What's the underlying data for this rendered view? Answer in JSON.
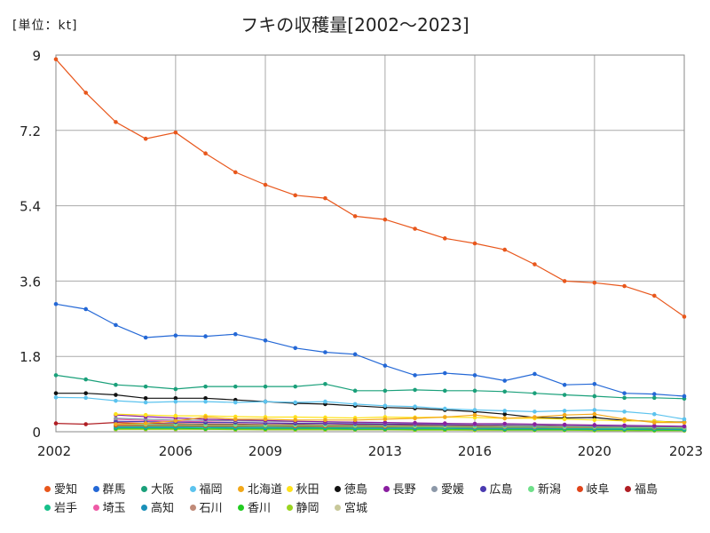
{
  "chart_data": {
    "type": "line",
    "title": "フキの収穫量[2002～2023]",
    "unit_label": "[単位：kt]",
    "ylim": [
      0,
      9
    ],
    "xlim": [
      2002,
      2023
    ],
    "y_ticks": [
      "0",
      "1.8",
      "3.6",
      "5.4",
      "7.2",
      "9"
    ],
    "x_ticks": [
      "2002",
      "2006",
      "2009",
      "2013",
      "2016",
      "2020",
      "2023"
    ],
    "grid": true,
    "legend_position": "bottom",
    "series": [
      {
        "name": "愛知",
        "color": "#e8571c",
        "x": [
          2002,
          2003,
          2004,
          2005,
          2006,
          2007,
          2008,
          2009,
          2010,
          2011,
          2012,
          2013,
          2014,
          2015,
          2016,
          2017,
          2018,
          2019,
          2020,
          2021,
          2022,
          2023
        ],
        "values": [
          8.9,
          8.1,
          7.4,
          7.0,
          7.15,
          6.65,
          6.2,
          5.9,
          5.65,
          5.58,
          5.15,
          5.07,
          4.85,
          4.62,
          4.5,
          4.35,
          4.0,
          3.6,
          3.56,
          3.48,
          3.25,
          2.75
        ]
      },
      {
        "name": "群馬",
        "color": "#2468d6",
        "x": [
          2002,
          2003,
          2004,
          2005,
          2006,
          2007,
          2008,
          2009,
          2010,
          2011,
          2012,
          2013,
          2014,
          2015,
          2016,
          2017,
          2018,
          2019,
          2020,
          2021,
          2022,
          2023
        ],
        "values": [
          3.05,
          2.93,
          2.55,
          2.25,
          2.3,
          2.28,
          2.33,
          2.18,
          2.0,
          1.9,
          1.85,
          1.58,
          1.35,
          1.4,
          1.35,
          1.22,
          1.38,
          1.12,
          1.14,
          0.92,
          0.9,
          0.85
        ]
      },
      {
        "name": "大阪",
        "color": "#1aa07a",
        "x": [
          2002,
          2003,
          2004,
          2005,
          2006,
          2007,
          2008,
          2009,
          2010,
          2011,
          2012,
          2013,
          2014,
          2015,
          2016,
          2017,
          2018,
          2019,
          2020,
          2021,
          2022,
          2023
        ],
        "values": [
          1.35,
          1.25,
          1.12,
          1.08,
          1.02,
          1.08,
          1.08,
          1.08,
          1.08,
          1.14,
          0.98,
          0.98,
          1.0,
          0.98,
          0.98,
          0.96,
          0.92,
          0.88,
          0.85,
          0.81,
          0.81,
          0.79
        ]
      },
      {
        "name": "福岡",
        "color": "#5cc3ee",
        "x": [
          2002,
          2003,
          2004,
          2005,
          2006,
          2007,
          2008,
          2009,
          2010,
          2011,
          2012,
          2013,
          2014,
          2015,
          2016,
          2017,
          2018,
          2019,
          2020,
          2021,
          2022,
          2023
        ],
        "values": [
          0.82,
          0.81,
          0.74,
          0.7,
          0.72,
          0.72,
          0.7,
          0.72,
          0.7,
          0.72,
          0.66,
          0.62,
          0.6,
          0.55,
          0.52,
          0.5,
          0.48,
          0.5,
          0.52,
          0.48,
          0.42,
          0.3
        ]
      },
      {
        "name": "北海道",
        "color": "#f2a81a",
        "x": [
          2004,
          2005,
          2006,
          2007,
          2008,
          2009,
          2010,
          2011,
          2012,
          2013,
          2014,
          2015,
          2016,
          2017,
          2018,
          2019,
          2020,
          2021,
          2022,
          2023
        ],
        "values": [
          0.18,
          0.2,
          0.26,
          0.35,
          0.3,
          0.3,
          0.28,
          0.28,
          0.28,
          0.3,
          0.32,
          0.35,
          0.4,
          0.32,
          0.35,
          0.4,
          0.42,
          0.3,
          0.22,
          0.22
        ]
      },
      {
        "name": "秋田",
        "color": "#ffe21a",
        "x": [
          2004,
          2005,
          2006,
          2007,
          2008,
          2009,
          2010,
          2011,
          2012,
          2013,
          2014,
          2015,
          2016,
          2017,
          2018,
          2019,
          2020,
          2021,
          2022,
          2023
        ],
        "values": [
          0.42,
          0.4,
          0.38,
          0.38,
          0.36,
          0.35,
          0.35,
          0.34,
          0.33,
          0.35,
          0.34,
          0.35,
          0.34,
          0.32,
          0.32,
          0.3,
          0.28,
          0.26,
          0.25,
          0.22
        ]
      },
      {
        "name": "徳島",
        "color": "#111111",
        "x": [
          2002,
          2003,
          2004,
          2005,
          2006,
          2007,
          2008,
          2009,
          2010,
          2011,
          2012,
          2013,
          2014,
          2015,
          2016,
          2017,
          2018,
          2019,
          2020,
          2021,
          2022,
          2023
        ],
        "values": [
          0.92,
          0.92,
          0.88,
          0.8,
          0.8,
          0.8,
          0.76,
          0.72,
          0.68,
          0.66,
          0.62,
          0.58,
          0.56,
          0.52,
          0.48,
          0.42,
          0.34,
          0.33,
          0.34,
          0.27,
          0.25,
          0.23
        ]
      },
      {
        "name": "長野",
        "color": "#8a1fa0",
        "x": [
          2004,
          2005,
          2006,
          2007,
          2008,
          2009,
          2010,
          2011,
          2012,
          2013,
          2014,
          2015,
          2016,
          2017,
          2018,
          2019,
          2020,
          2021,
          2022,
          2023
        ],
        "values": [
          0.4,
          0.36,
          0.33,
          0.3,
          0.28,
          0.27,
          0.25,
          0.24,
          0.23,
          0.22,
          0.21,
          0.2,
          0.19,
          0.19,
          0.18,
          0.17,
          0.16,
          0.15,
          0.14,
          0.13
        ]
      },
      {
        "name": "愛媛",
        "color": "#8c98a8",
        "x": [
          2004,
          2005,
          2006,
          2007,
          2008,
          2009,
          2010,
          2011,
          2012,
          2013,
          2014,
          2015,
          2016,
          2017,
          2018,
          2019,
          2020,
          2021,
          2022,
          2023
        ],
        "values": [
          0.32,
          0.3,
          0.28,
          0.27,
          0.26,
          0.25,
          0.24,
          0.23,
          0.22,
          0.21,
          0.2,
          0.19,
          0.18,
          0.17,
          0.16,
          0.16,
          0.15,
          0.14,
          0.13,
          0.12
        ]
      },
      {
        "name": "広島",
        "color": "#4a3ab0",
        "x": [
          2004,
          2005,
          2006,
          2007,
          2008,
          2009,
          2010,
          2011,
          2012,
          2013,
          2014,
          2015,
          2016,
          2017,
          2018,
          2019,
          2020,
          2021,
          2022,
          2023
        ],
        "values": [
          0.25,
          0.24,
          0.23,
          0.22,
          0.22,
          0.21,
          0.2,
          0.2,
          0.19,
          0.18,
          0.18,
          0.17,
          0.17,
          0.16,
          0.15,
          0.15,
          0.14,
          0.13,
          0.12,
          0.12
        ]
      },
      {
        "name": "新潟",
        "color": "#6fe08a",
        "x": [
          2004,
          2005,
          2006,
          2007,
          2008,
          2009,
          2010,
          2011,
          2012,
          2013,
          2014,
          2015,
          2016,
          2017,
          2018,
          2019,
          2020,
          2021,
          2022,
          2023
        ],
        "values": [
          0.18,
          0.17,
          0.17,
          0.16,
          0.16,
          0.15,
          0.15,
          0.15,
          0.14,
          0.14,
          0.13,
          0.13,
          0.12,
          0.12,
          0.12,
          0.11,
          0.11,
          0.1,
          0.1,
          0.09
        ]
      },
      {
        "name": "岐阜",
        "color": "#e0441a",
        "x": [
          2004,
          2005,
          2006,
          2007,
          2008,
          2009,
          2010,
          2011,
          2012,
          2013,
          2014,
          2015,
          2016,
          2017,
          2018,
          2019,
          2020,
          2021,
          2022,
          2023
        ],
        "values": [
          0.15,
          0.15,
          0.15,
          0.14,
          0.14,
          0.14,
          0.13,
          0.13,
          0.13,
          0.12,
          0.12,
          0.12,
          0.11,
          0.11,
          0.11,
          0.1,
          0.1,
          0.1,
          0.09,
          0.09
        ]
      },
      {
        "name": "福島",
        "color": "#b01e24",
        "x": [
          2002,
          2003,
          2004,
          2005,
          2006,
          2007,
          2008,
          2009,
          2010,
          2011,
          2012,
          2013,
          2014,
          2015,
          2016,
          2017,
          2018,
          2019,
          2020,
          2021,
          2022,
          2023
        ],
        "values": [
          0.2,
          0.18,
          0.22,
          0.2,
          0.19,
          0.18,
          0.18,
          0.17,
          0.17,
          0.16,
          0.16,
          0.15,
          0.15,
          0.14,
          0.14,
          0.13,
          0.13,
          0.12,
          0.12,
          0.11,
          0.11,
          0.1
        ]
      },
      {
        "name": "岩手",
        "color": "#17c08a",
        "x": [
          2004,
          2005,
          2006,
          2007,
          2008,
          2009,
          2010,
          2011,
          2012,
          2013,
          2014,
          2015,
          2016,
          2017,
          2018,
          2019,
          2020,
          2021,
          2022,
          2023
        ],
        "values": [
          0.12,
          0.12,
          0.12,
          0.11,
          0.11,
          0.11,
          0.11,
          0.1,
          0.1,
          0.1,
          0.1,
          0.09,
          0.09,
          0.09,
          0.09,
          0.08,
          0.08,
          0.08,
          0.07,
          0.07
        ]
      },
      {
        "name": "埼玉",
        "color": "#ee5aa6",
        "x": [
          2004,
          2005,
          2006,
          2007,
          2008,
          2009,
          2010,
          2011,
          2012,
          2013,
          2014,
          2015,
          2016,
          2017,
          2018,
          2019,
          2020,
          2021,
          2022,
          2023
        ],
        "values": [
          0.3,
          0.27,
          0.25,
          0.24,
          0.22,
          0.21,
          0.2,
          0.19,
          0.18,
          0.17,
          0.16,
          0.15,
          0.14,
          0.13,
          0.12,
          0.11,
          0.1,
          0.09,
          0.08,
          0.08
        ]
      },
      {
        "name": "高知",
        "color": "#1a90b8",
        "x": [
          2004,
          2005,
          2006,
          2007,
          2008,
          2009,
          2010,
          2011,
          2012,
          2013,
          2014,
          2015,
          2016,
          2017,
          2018,
          2019,
          2020,
          2021,
          2022,
          2023
        ],
        "values": [
          0.1,
          0.1,
          0.1,
          0.1,
          0.09,
          0.09,
          0.09,
          0.09,
          0.08,
          0.08,
          0.08,
          0.08,
          0.07,
          0.07,
          0.07,
          0.07,
          0.06,
          0.06,
          0.06,
          0.05
        ]
      },
      {
        "name": "石川",
        "color": "#c08a78",
        "x": [
          2004,
          2005,
          2006,
          2007,
          2008,
          2009,
          2010,
          2011,
          2012,
          2013,
          2014,
          2015,
          2016,
          2017,
          2018,
          2019,
          2020,
          2021,
          2022,
          2023
        ],
        "values": [
          0.14,
          0.14,
          0.13,
          0.13,
          0.13,
          0.12,
          0.12,
          0.12,
          0.11,
          0.11,
          0.11,
          0.1,
          0.1,
          0.1,
          0.09,
          0.09,
          0.09,
          0.08,
          0.08,
          0.08
        ]
      },
      {
        "name": "香川",
        "color": "#22cc22",
        "x": [
          2004,
          2005,
          2006,
          2007,
          2008,
          2009,
          2010,
          2011,
          2012,
          2013,
          2014,
          2015,
          2016,
          2017,
          2018,
          2019,
          2020,
          2021,
          2022,
          2023
        ],
        "values": [
          0.08,
          0.08,
          0.08,
          0.07,
          0.07,
          0.07,
          0.07,
          0.07,
          0.06,
          0.06,
          0.06,
          0.06,
          0.06,
          0.05,
          0.05,
          0.05,
          0.05,
          0.05,
          0.04,
          0.04
        ]
      },
      {
        "name": "静岡",
        "color": "#9ad420",
        "x": [
          2004,
          2005,
          2006,
          2007,
          2008,
          2009,
          2010,
          2011,
          2012,
          2013,
          2014,
          2015,
          2016,
          2017,
          2018,
          2019,
          2020,
          2021,
          2022,
          2023
        ],
        "values": [
          0.06,
          0.06,
          0.06,
          0.06,
          0.05,
          0.05,
          0.05,
          0.05,
          0.05,
          0.05,
          0.04,
          0.04,
          0.04,
          0.04,
          0.04,
          0.04,
          0.03,
          0.03,
          0.03,
          0.03
        ]
      },
      {
        "name": "宮城",
        "color": "#c8c89a",
        "x": [
          2004,
          2005,
          2006,
          2007,
          2008,
          2009,
          2010,
          2011,
          2012,
          2013,
          2014,
          2015,
          2016,
          2017,
          2018,
          2019,
          2020,
          2021,
          2022,
          2023
        ],
        "values": [
          0.05,
          0.05,
          0.05,
          0.05,
          0.05,
          0.04,
          0.04,
          0.04,
          0.04,
          0.04,
          0.04,
          0.04,
          0.03,
          0.03,
          0.03,
          0.03,
          0.03,
          0.03,
          0.02,
          0.02
        ]
      }
    ]
  }
}
